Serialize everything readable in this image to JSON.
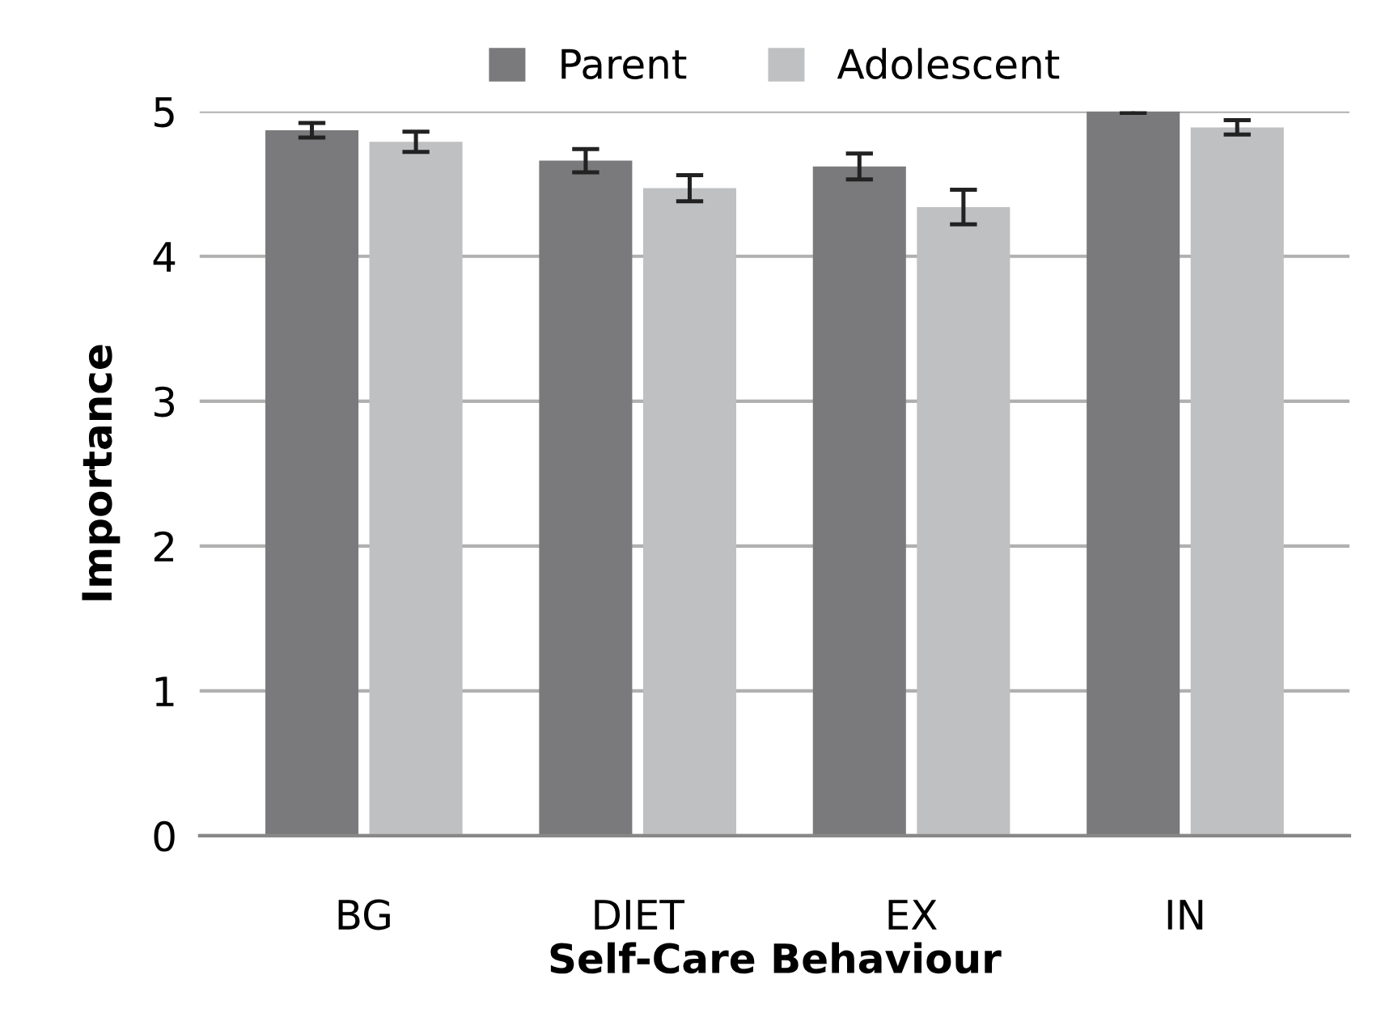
{
  "chart_data": {
    "type": "bar",
    "xlabel": "Self-Care Behaviour",
    "ylabel": "Importance",
    "categories": [
      "BG",
      "DIET",
      "EX",
      "IN"
    ],
    "series": [
      {
        "name": "Parent",
        "color": "#7a7a7c",
        "values": [
          4.87,
          4.66,
          4.62,
          5.0
        ],
        "errors": [
          0.05,
          0.08,
          0.09,
          0.01
        ]
      },
      {
        "name": "Adolescent",
        "color": "#bfc0c2",
        "values": [
          4.79,
          4.47,
          4.34,
          4.89
        ],
        "errors": [
          0.07,
          0.09,
          0.12,
          0.05
        ]
      }
    ],
    "ylim": [
      0,
      5
    ],
    "yticks": [
      0,
      1,
      2,
      3,
      4,
      5
    ],
    "grid": "y",
    "legend": "top"
  }
}
